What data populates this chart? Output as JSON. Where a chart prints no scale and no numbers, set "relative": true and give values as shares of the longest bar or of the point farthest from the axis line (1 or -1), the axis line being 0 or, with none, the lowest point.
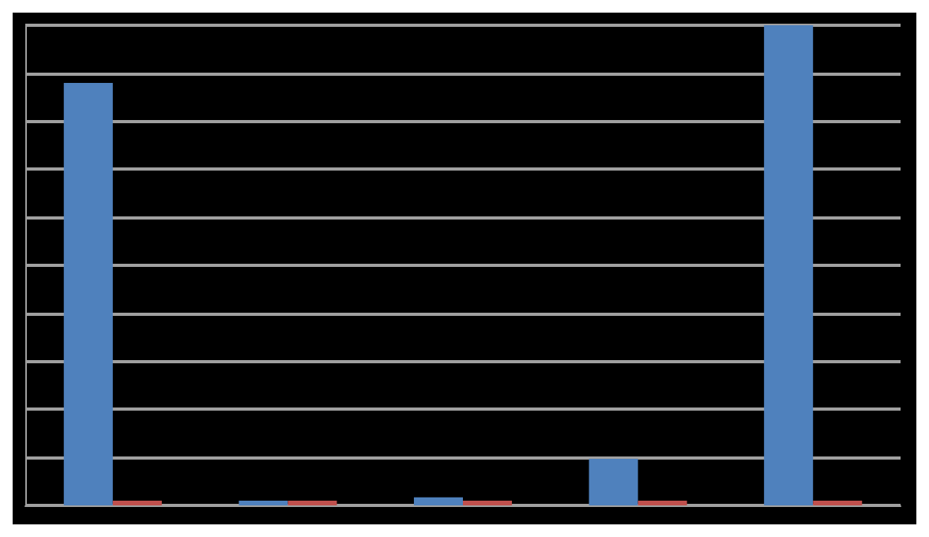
{
  "chart_data": {
    "type": "bar",
    "relative": true,
    "grid": "y",
    "categories": [
      null,
      null,
      null,
      null,
      null
    ],
    "series": [
      {
        "color": "#4f81bd",
        "values": [
          0.88,
          0.01,
          0.017,
          0.097,
          1
        ]
      },
      {
        "color": "#c0504d",
        "values": [
          0.01,
          0.01,
          0.01,
          0.01,
          0.01
        ]
      }
    ]
  }
}
